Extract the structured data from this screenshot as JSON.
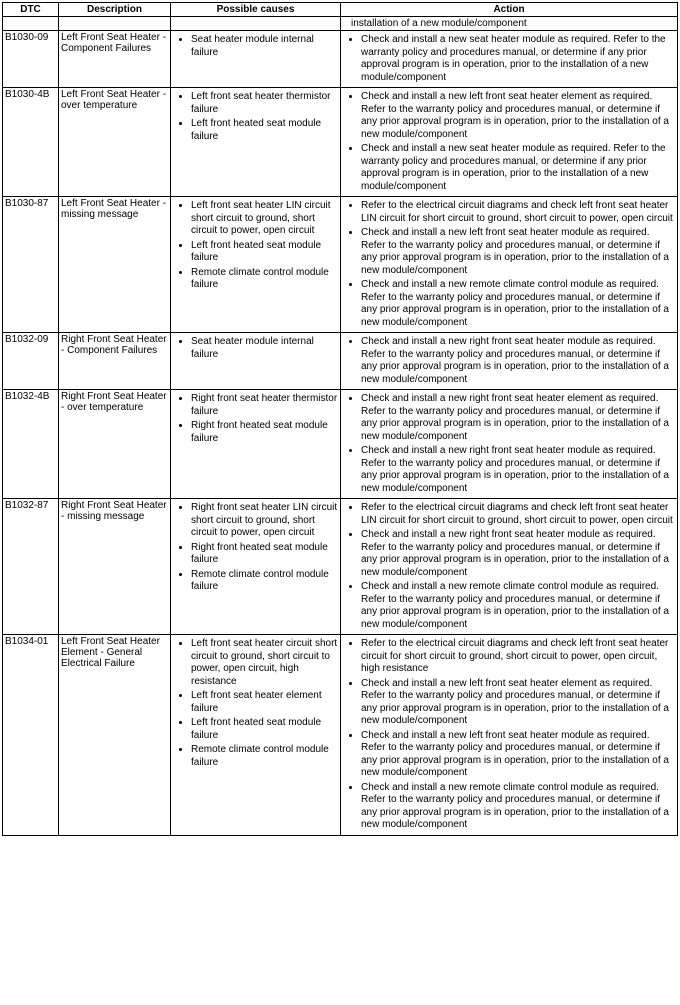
{
  "headers": {
    "dtc": "DTC",
    "description": "Description",
    "causes": "Possible causes",
    "action": "Action"
  },
  "top_action_fragment": "installation of a new module/component",
  "rows": [
    {
      "dtc": "B1030-09",
      "description": "Left Front Seat Heater - Component Failures",
      "causes": [
        "Seat heater module internal failure"
      ],
      "actions": [
        "Check and install a new seat heater module as required. Refer to the warranty policy and procedures manual, or determine if any prior approval program is in operation, prior to the installation of a new module/component"
      ]
    },
    {
      "dtc": "B1030-4B",
      "description": "Left Front Seat Heater - over temperature",
      "causes": [
        "Left front seat heater thermistor failure",
        "Left front heated seat module failure"
      ],
      "actions": [
        "Check and install a new left front seat heater element as required. Refer to the warranty policy and procedures manual, or determine if any prior approval program is in operation, prior to the installation of a new module/component",
        "Check and install a new seat heater module as required. Refer to the warranty policy and procedures manual, or determine if any prior approval program is in operation, prior to the installation of a new module/component"
      ]
    },
    {
      "dtc": "B1030-87",
      "description": "Left Front Seat Heater - missing message",
      "causes": [
        "Left front seat heater LIN circuit short circuit to ground, short circuit to power, open circuit",
        "Left front heated seat module failure",
        "Remote climate control module failure"
      ],
      "actions": [
        "Refer to the electrical circuit diagrams and check left front seat heater LIN circuit for short circuit to ground, short circuit to power, open circuit",
        "Check and install a new left front seat heater module as required. Refer to the warranty policy and procedures manual, or determine if any prior approval program is in operation, prior to the installation of a new module/component",
        "Check and install a new remote climate control module as required. Refer to the warranty policy and procedures manual, or determine if any prior approval program is in operation, prior to the installation of a new module/component"
      ]
    },
    {
      "dtc": "B1032-09",
      "description": "Right Front Seat Heater - Component Failures",
      "causes": [
        "Seat heater module internal failure"
      ],
      "actions": [
        "Check and install a new right front seat heater module as required. Refer to the warranty policy and procedures manual, or determine if any prior approval program is in operation, prior to the installation of a new module/component"
      ]
    },
    {
      "dtc": "B1032-4B",
      "description": "Right Front Seat Heater - over temperature",
      "causes": [
        "Right front seat heater thermistor failure",
        "Right front heated seat module failure"
      ],
      "actions": [
        "Check and install a new right front seat heater element as required. Refer to the warranty policy and procedures manual, or determine if any prior approval program is in operation, prior to the installation of a new module/component",
        "Check and install a new right front seat heater module as required. Refer to the warranty policy and procedures manual, or determine if any prior approval program is in operation, prior to the installation of a new module/component"
      ]
    },
    {
      "dtc": "B1032-87",
      "description": "Right Front Seat Heater - missing message",
      "causes": [
        "Right front seat heater LIN circuit short circuit to ground, short circuit to power, open circuit",
        "Right front heated seat module failure",
        "Remote climate control module failure"
      ],
      "actions": [
        "Refer to the electrical circuit diagrams and check left front seat heater LIN circuit for short circuit to ground, short circuit to power, open circuit",
        "Check and install a new right front seat heater module as required. Refer to the warranty policy and procedures manual, or determine if any prior approval program is in operation, prior to the installation of a new module/component",
        "Check and install a new remote climate control module as required. Refer to the warranty policy and procedures manual, or determine if any prior approval program is in operation, prior to the installation of a new module/component"
      ]
    },
    {
      "dtc": "B1034-01",
      "description": "Left Front Seat Heater Element - General Electrical Failure",
      "causes": [
        "Left front seat heater circuit short circuit to ground, short circuit to power, open circuit, high resistance",
        "Left front seat heater element failure",
        "Left front heated seat module failure",
        "Remote climate control module failure"
      ],
      "actions": [
        "Refer to the electrical circuit diagrams and check left front seat heater circuit for short circuit to ground, short circuit to power, open circuit, high resistance",
        "Check and install a new left front seat heater element as required. Refer to the warranty policy and procedures manual, or determine if any prior approval program is in operation, prior to the installation of a new module/component",
        "Check and install a new left front seat heater module as required. Refer to the warranty policy and procedures manual, or determine if any prior approval program is in operation, prior to the installation of a new module/component",
        "Check and install a new remote climate control module as required. Refer to the warranty policy and procedures manual, or determine if any prior approval program is in operation, prior to the installation of a new module/component"
      ]
    }
  ]
}
